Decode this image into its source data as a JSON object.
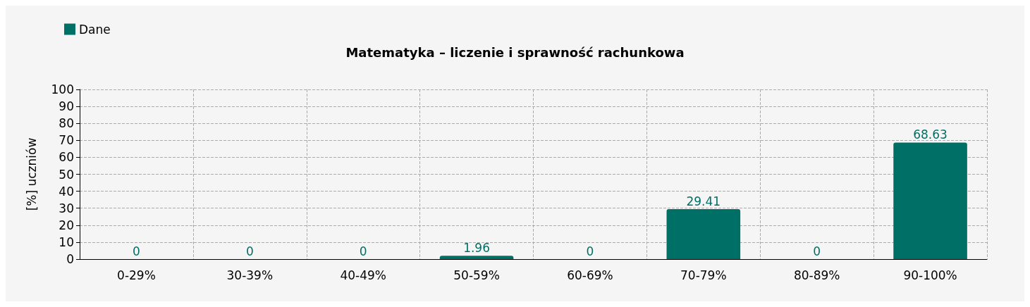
{
  "chart_data": {
    "type": "bar",
    "title": "Matematyka – liczenie i sprawność rachunkowa",
    "ylabel": "[%] uczniów",
    "categories": [
      "0-29%",
      "30-39%",
      "40-49%",
      "50-59%",
      "60-69%",
      "70-79%",
      "80-89%",
      "90-100%"
    ],
    "series": [
      {
        "name": "Dane",
        "color": "#006f66",
        "values": [
          0,
          0,
          0,
          1.96,
          0,
          29.41,
          0,
          68.63
        ]
      }
    ],
    "ylim": [
      0,
      100
    ],
    "yticks": [
      0,
      10,
      20,
      30,
      40,
      50,
      60,
      70,
      80,
      90,
      100
    ],
    "grid": true,
    "legend": "top left",
    "data_labels": true
  }
}
